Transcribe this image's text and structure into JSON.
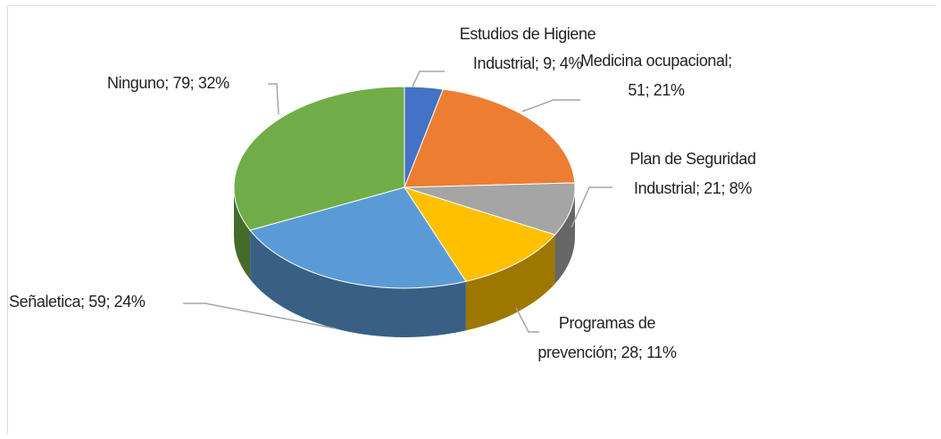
{
  "chart_data": {
    "type": "pie",
    "values": [
      9,
      51,
      21,
      28,
      59,
      79
    ],
    "value_labels": [
      "Estudios de Higiene Industrial; 9; 4%",
      "Medicina ocupacional; 51; 21%",
      "Plan de Seguridad Industrial; 21; 8%",
      "Programas de prevención; 28; 11%",
      "Señaletica; 59; 24%",
      "Ninguno; 79; 32%"
    ],
    "colors": [
      "#4472c4",
      "#ed7d31",
      "#a5a5a5",
      "#ffc000",
      "#5b9bd5",
      "#70ad47"
    ]
  }
}
